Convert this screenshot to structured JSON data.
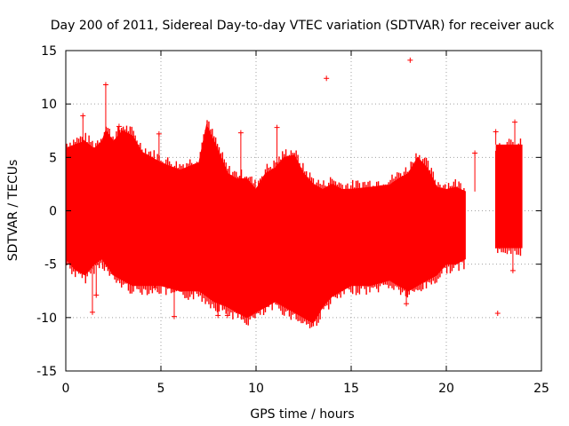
{
  "chart_data": {
    "type": "scatter",
    "title": "Day 200 of 2011, Sidereal Day-to-day VTEC variation (SDTVAR) for receiver auck",
    "xlabel": "GPS time / hours",
    "ylabel": "SDTVAR / TECUs",
    "xlim": [
      0,
      25
    ],
    "ylim": [
      -15,
      15
    ],
    "x_ticks": [
      0,
      5,
      10,
      15,
      20,
      25
    ],
    "y_ticks": [
      -15,
      -10,
      -5,
      0,
      5,
      10,
      15
    ],
    "grid": true,
    "marker": "+",
    "color": "#ff0000",
    "series": [
      {
        "name": "SDTVAR",
        "envelope_hours": [
          0,
          0.5,
          1,
          1.5,
          1.9,
          2.1,
          2.5,
          3,
          3.5,
          4,
          5,
          6,
          7,
          7.4,
          7.8,
          8.5,
          9,
          9.5,
          10,
          10.5,
          11,
          11.5,
          12,
          12.5,
          13,
          13.5,
          14,
          14.5,
          15,
          16,
          17,
          17.5,
          18,
          18.5,
          19,
          19.5,
          20,
          20.5,
          21
        ],
        "envelope_upper": [
          5.8,
          6.2,
          6.5,
          5.8,
          6.5,
          7.5,
          6.5,
          7.5,
          7.0,
          5.5,
          4.5,
          3.8,
          4.5,
          8.0,
          6.5,
          3.5,
          3.0,
          3.0,
          2.0,
          3.5,
          4.0,
          5.0,
          5.2,
          3.5,
          2.5,
          2.0,
          2.5,
          2.0,
          2.0,
          2.2,
          2.4,
          3.0,
          3.5,
          5.0,
          4.0,
          2.2,
          2.0,
          2.2,
          1.8
        ],
        "envelope_lower": [
          -4.5,
          -5.5,
          -6.0,
          -5.0,
          -4.5,
          -5.0,
          -6.0,
          -6.5,
          -7.0,
          -7.0,
          -7.0,
          -7.5,
          -7.5,
          -8.0,
          -8.5,
          -9.0,
          -9.5,
          -10.0,
          -9.5,
          -9.0,
          -8.5,
          -9.0,
          -9.5,
          -10.0,
          -10.5,
          -9.0,
          -8.0,
          -7.5,
          -7.0,
          -7.0,
          -6.5,
          -7.0,
          -7.5,
          -7.0,
          -6.5,
          -6.0,
          -5.0,
          -5.0,
          -4.5
        ],
        "gap_hours": [
          21.0,
          22.6
        ],
        "late_block": {
          "x_start": 22.6,
          "x_end": 24.0,
          "upper": 6.2,
          "lower": -3.5
        },
        "outliers": [
          {
            "x": 18.1,
            "y": 14.1
          },
          {
            "x": 13.7,
            "y": 12.4
          },
          {
            "x": 2.1,
            "y": 11.8
          },
          {
            "x": 0.9,
            "y": 8.9
          },
          {
            "x": 2.8,
            "y": 7.9
          },
          {
            "x": 11.1,
            "y": 7.8
          },
          {
            "x": 22.6,
            "y": 7.4
          },
          {
            "x": 9.2,
            "y": 7.3
          },
          {
            "x": 23.6,
            "y": 8.3
          },
          {
            "x": 1.4,
            "y": -9.5
          },
          {
            "x": 1.6,
            "y": -7.9
          },
          {
            "x": 5.7,
            "y": -9.9
          },
          {
            "x": 8.0,
            "y": -9.8
          },
          {
            "x": 8.5,
            "y": -9.8
          },
          {
            "x": 17.9,
            "y": -8.7
          },
          {
            "x": 22.7,
            "y": -9.6
          },
          {
            "x": 23.5,
            "y": -5.6
          },
          {
            "x": 4.7,
            "y": -7.2
          },
          {
            "x": 4.9,
            "y": 7.2
          },
          {
            "x": 21.5,
            "y": 5.4
          }
        ]
      }
    ]
  }
}
